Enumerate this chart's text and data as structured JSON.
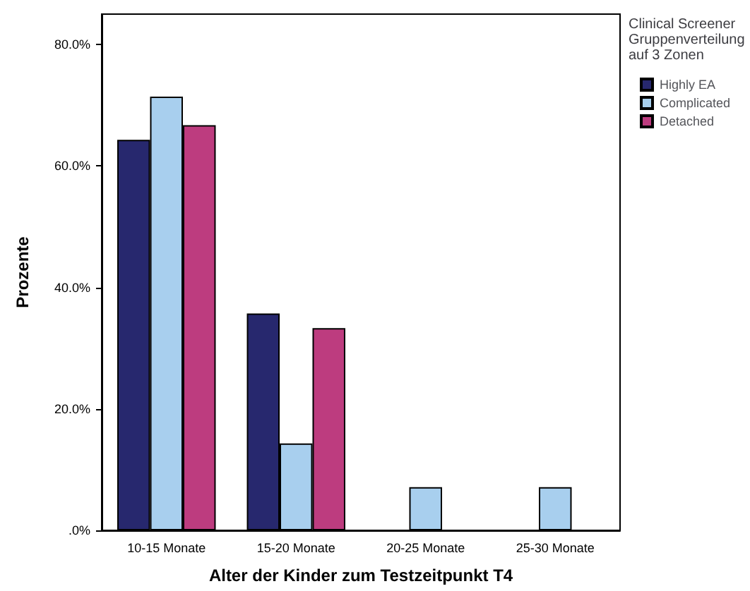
{
  "chart_data": {
    "type": "bar",
    "xlabel": "Alter der Kinder zum Testzeitpunkt T4",
    "ylabel": "Prozente",
    "legend_title": "Clinical Screener Gruppenverteilung auf 3 Zonen",
    "categories": [
      "10-15 Monate",
      "15-20 Monate",
      "20-25 Monate",
      "25-30 Monate"
    ],
    "series": [
      {
        "name": "Highly EA",
        "color": "#27286e",
        "values": [
          64.3,
          35.7,
          null,
          null
        ]
      },
      {
        "name": "Complicated",
        "color": "#a8cfee",
        "values": [
          71.4,
          14.3,
          7.1,
          7.1
        ]
      },
      {
        "name": "Detached",
        "color": "#bd3c7f",
        "values": [
          66.7,
          33.3,
          null,
          null
        ]
      }
    ],
    "ylim": [
      0,
      85
    ],
    "yticks": [
      {
        "value": 0,
        "label": ".0%"
      },
      {
        "value": 20,
        "label": "20.0%"
      },
      {
        "value": 40,
        "label": "40.0%"
      },
      {
        "value": 60,
        "label": "60.0%"
      },
      {
        "value": 80,
        "label": "80.0%"
      }
    ],
    "grid": false,
    "legend": "top right"
  }
}
